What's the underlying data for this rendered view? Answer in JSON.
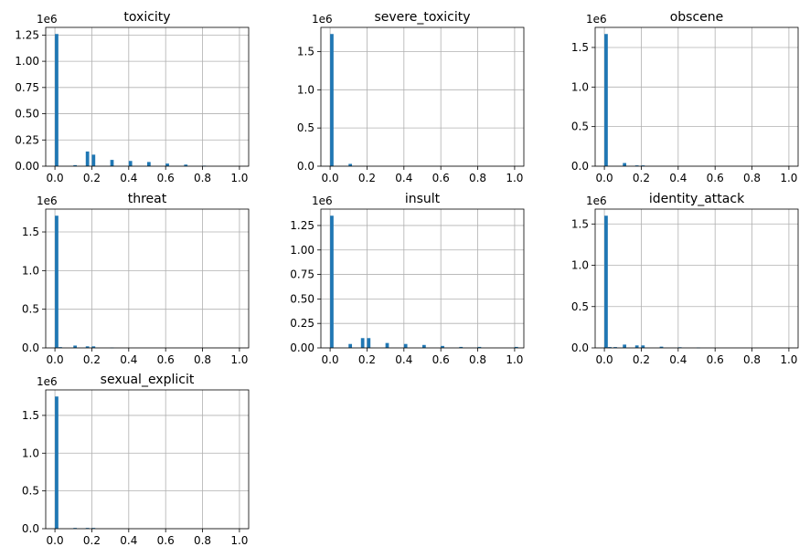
{
  "chart_data": [
    {
      "type": "bar",
      "title": "toxicity",
      "x": [
        0.0,
        0.1,
        0.167,
        0.2,
        0.3,
        0.4,
        0.5,
        0.6,
        0.7,
        0.8
      ],
      "values": [
        1.26,
        0.01,
        0.14,
        0.11,
        0.06,
        0.05,
        0.04,
        0.025,
        0.015,
        0.005
      ],
      "xlim": [
        0,
        1
      ],
      "ylim": [
        0,
        1.25
      ],
      "xticks": [
        "0.0",
        "0.2",
        "0.4",
        "0.6",
        "0.8",
        "1.0"
      ],
      "yticks": [
        "0.00",
        "0.25",
        "0.50",
        "0.75",
        "1.00",
        "1.25"
      ],
      "multiplier": "1e6",
      "grid": true
    },
    {
      "type": "bar",
      "title": "severe_toxicity",
      "x": [
        0.0,
        0.1
      ],
      "values": [
        1.73,
        0.03
      ],
      "xlim": [
        0,
        1
      ],
      "ylim": [
        0,
        1.5
      ],
      "xticks": [
        "0.0",
        "0.2",
        "0.4",
        "0.6",
        "0.8",
        "1.0"
      ],
      "yticks": [
        "0.0",
        "0.5",
        "1.0",
        "1.5"
      ],
      "multiplier": "1e6",
      "grid": true
    },
    {
      "type": "bar",
      "title": "obscene",
      "x": [
        0.0,
        0.1,
        0.167,
        0.2
      ],
      "values": [
        1.67,
        0.04,
        0.01,
        0.01
      ],
      "xlim": [
        0,
        1
      ],
      "ylim": [
        0,
        1.5
      ],
      "xticks": [
        "0.0",
        "0.2",
        "0.4",
        "0.6",
        "0.8",
        "1.0"
      ],
      "yticks": [
        "0.0",
        "0.5",
        "1.0",
        "1.5"
      ],
      "multiplier": "1e6",
      "grid": true
    },
    {
      "type": "bar",
      "title": "threat",
      "x": [
        0.0,
        0.02,
        0.1,
        0.167,
        0.2,
        0.3
      ],
      "values": [
        1.71,
        0.01,
        0.03,
        0.02,
        0.02,
        0.005
      ],
      "xlim": [
        0,
        1
      ],
      "ylim": [
        0,
        1.5
      ],
      "xticks": [
        "0.0",
        "0.2",
        "0.4",
        "0.6",
        "0.8",
        "1.0"
      ],
      "yticks": [
        "0.0",
        "0.5",
        "1.0",
        "1.5"
      ],
      "multiplier": "1e6",
      "grid": true
    },
    {
      "type": "bar",
      "title": "insult",
      "x": [
        0.0,
        0.1,
        0.167,
        0.2,
        0.3,
        0.4,
        0.5,
        0.6,
        0.7,
        0.8,
        1.0
      ],
      "values": [
        1.35,
        0.04,
        0.1,
        0.1,
        0.05,
        0.04,
        0.03,
        0.02,
        0.01,
        0.01,
        0.01
      ],
      "xlim": [
        0,
        1
      ],
      "ylim": [
        0,
        1.25
      ],
      "xticks": [
        "0.0",
        "0.2",
        "0.4",
        "0.6",
        "0.8",
        "1.0"
      ],
      "yticks": [
        "0.00",
        "0.25",
        "0.50",
        "0.75",
        "1.00",
        "1.25"
      ],
      "multiplier": "1e6",
      "grid": true
    },
    {
      "type": "bar",
      "title": "identity_attack",
      "x": [
        0.0,
        0.02,
        0.05,
        0.1,
        0.167,
        0.2,
        0.3,
        0.4,
        0.5
      ],
      "values": [
        1.6,
        0.01,
        0.01,
        0.04,
        0.03,
        0.03,
        0.015,
        0.008,
        0.005
      ],
      "xlim": [
        0,
        1
      ],
      "ylim": [
        0,
        1.5
      ],
      "xticks": [
        "0.0",
        "0.2",
        "0.4",
        "0.6",
        "0.8",
        "1.0"
      ],
      "yticks": [
        "0.0",
        "0.5",
        "1.0",
        "1.5"
      ],
      "multiplier": "1e6",
      "grid": true
    },
    {
      "type": "bar",
      "title": "sexual_explicit",
      "x": [
        0.0,
        0.1,
        0.167,
        0.2
      ],
      "values": [
        1.75,
        0.01,
        0.01,
        0.01
      ],
      "xlim": [
        0,
        1
      ],
      "ylim": [
        0,
        1.5
      ],
      "xticks": [
        "0.0",
        "0.2",
        "0.4",
        "0.6",
        "0.8",
        "1.0"
      ],
      "yticks": [
        "0.0",
        "0.5",
        "1.0",
        "1.5"
      ],
      "multiplier": "1e6",
      "grid": true
    }
  ],
  "colors": {
    "bar": "#1f77b4",
    "grid": "#b0b0b0",
    "axes": "#000000"
  }
}
